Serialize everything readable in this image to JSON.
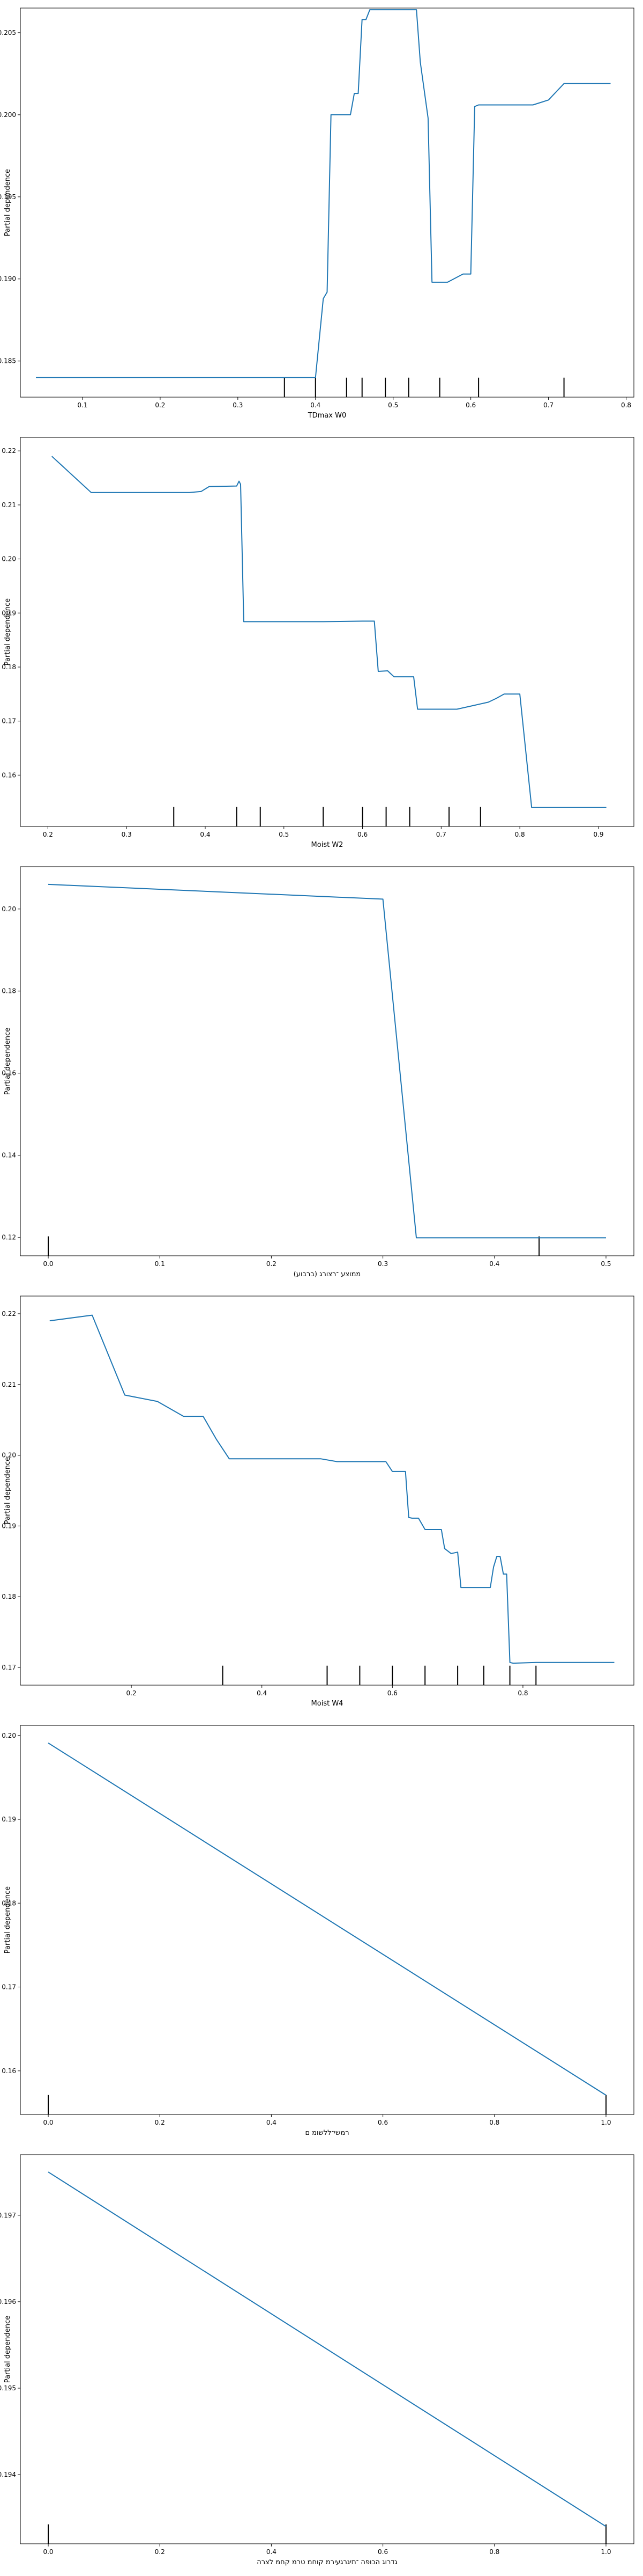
{
  "chart_data": [
    {
      "type": "line",
      "xlabel": "TDmax W0",
      "ylabel": "Partial dependence",
      "xlim": [
        0.02,
        0.81
      ],
      "ylim": [
        0.1828,
        0.2065
      ],
      "xticks": [
        0.1,
        0.2,
        0.3,
        0.4,
        0.5,
        0.6,
        0.7,
        0.8
      ],
      "xtick_labels": [
        "0.1",
        "0.2",
        "0.3",
        "0.4",
        "0.5",
        "0.6",
        "0.7",
        "0.8"
      ],
      "yticks": [
        0.185,
        0.19,
        0.195,
        0.2,
        0.205
      ],
      "ytick_labels": [
        "0.185",
        "0.190",
        "0.195",
        "0.200",
        "0.205"
      ],
      "x": [
        0.04,
        0.4,
        0.41,
        0.415,
        0.42,
        0.425,
        0.43,
        0.44,
        0.445,
        0.45,
        0.455,
        0.46,
        0.465,
        0.47,
        0.475,
        0.48,
        0.485,
        0.49,
        0.5,
        0.52,
        0.53,
        0.535,
        0.545,
        0.55,
        0.56,
        0.57,
        0.59,
        0.6,
        0.605,
        0.61,
        0.62,
        0.68,
        0.7,
        0.72,
        0.78
      ],
      "y": [
        0.184,
        0.184,
        0.1888,
        0.1892,
        0.2,
        0.2,
        0.2,
        0.2,
        0.2,
        0.2013,
        0.2013,
        0.2058,
        0.2058,
        0.2064,
        0.2064,
        0.2064,
        0.2064,
        0.2064,
        0.2064,
        0.2064,
        0.2064,
        0.2032,
        0.1998,
        0.1898,
        0.1898,
        0.1898,
        0.1903,
        0.1903,
        0.2005,
        0.2006,
        0.2006,
        0.2006,
        0.2009,
        0.2019,
        0.2019
      ],
      "deciles": [
        0.36,
        0.4,
        0.44,
        0.46,
        0.49,
        0.52,
        0.56,
        0.61,
        0.72
      ]
    },
    {
      "type": "line",
      "xlabel": "Moist W2",
      "ylabel": "Partial dependence",
      "xlim": [
        0.165,
        0.945
      ],
      "ylim": [
        0.1505,
        0.2225
      ],
      "xticks": [
        0.2,
        0.3,
        0.4,
        0.5,
        0.6,
        0.7,
        0.8,
        0.9
      ],
      "xtick_labels": [
        "0.2",
        "0.3",
        "0.4",
        "0.5",
        "0.6",
        "0.7",
        "0.8",
        "0.9"
      ],
      "yticks": [
        0.16,
        0.17,
        0.18,
        0.19,
        0.2,
        0.21,
        0.22
      ],
      "ytick_labels": [
        "0.16",
        "0.17",
        "0.18",
        "0.19",
        "0.20",
        "0.21",
        "0.22"
      ],
      "x": [
        0.205,
        0.255,
        0.32,
        0.38,
        0.395,
        0.405,
        0.44,
        0.443,
        0.445,
        0.449,
        0.55,
        0.6,
        0.615,
        0.62,
        0.632,
        0.64,
        0.645,
        0.665,
        0.67,
        0.72,
        0.76,
        0.77,
        0.78,
        0.8,
        0.815,
        0.91
      ],
      "y": [
        0.219,
        0.2123,
        0.2123,
        0.2123,
        0.2125,
        0.2134,
        0.2135,
        0.2144,
        0.2138,
        0.1884,
        0.1884,
        0.1885,
        0.1885,
        0.1792,
        0.1793,
        0.1782,
        0.1782,
        0.1782,
        0.1722,
        0.1722,
        0.1735,
        0.1742,
        0.175,
        0.175,
        0.154,
        0.154
      ],
      "deciles": [
        0.36,
        0.44,
        0.47,
        0.55,
        0.6,
        0.63,
        0.66,
        0.71,
        0.75
      ]
    },
    {
      "type": "line",
      "xlabel": "(ברבוע) ממוצע ־רצורג",
      "ylabel": "Partial dependence",
      "xlim": [
        -0.025,
        0.525
      ],
      "ylim": [
        0.1155,
        0.2103
      ],
      "xticks": [
        0.0,
        0.1,
        0.2,
        0.3,
        0.4,
        0.5
      ],
      "xtick_labels": [
        "0.0",
        "0.1",
        "0.2",
        "0.3",
        "0.4",
        "0.5"
      ],
      "yticks": [
        0.12,
        0.14,
        0.16,
        0.18,
        0.2
      ],
      "ytick_labels": [
        "0.12",
        "0.14",
        "0.16",
        "0.18",
        "0.20"
      ],
      "x": [
        0.0,
        0.3,
        0.33,
        0.5
      ],
      "y": [
        0.206,
        0.2024,
        0.1199,
        0.1199
      ],
      "deciles": [
        0.0,
        0.44
      ]
    },
    {
      "type": "line",
      "xlabel": "Moist W4",
      "ylabel": "Partial dependence",
      "xlim": [
        0.03,
        0.97
      ],
      "ylim": [
        0.1675,
        0.2225
      ],
      "xticks": [
        0.2,
        0.4,
        0.6,
        0.8
      ],
      "xtick_labels": [
        "0.2",
        "0.4",
        "0.6",
        "0.8"
      ],
      "yticks": [
        0.17,
        0.18,
        0.19,
        0.2,
        0.21,
        0.22
      ],
      "ytick_labels": [
        "0.17",
        "0.18",
        "0.19",
        "0.20",
        "0.21",
        "0.22"
      ],
      "x": [
        0.075,
        0.14,
        0.19,
        0.24,
        0.28,
        0.31,
        0.33,
        0.35,
        0.38,
        0.49,
        0.515,
        0.52,
        0.59,
        0.6,
        0.62,
        0.625,
        0.63,
        0.64,
        0.65,
        0.655,
        0.66,
        0.675,
        0.68,
        0.69,
        0.7,
        0.705,
        0.71,
        0.72,
        0.75,
        0.755,
        0.76,
        0.765,
        0.77,
        0.775,
        0.78,
        0.785,
        0.82,
        0.94
      ],
      "y": [
        0.219,
        0.2198,
        0.2085,
        0.2076,
        0.2055,
        0.2055,
        0.2023,
        0.1995,
        0.1995,
        0.1995,
        0.1991,
        0.1991,
        0.1991,
        0.1977,
        0.1977,
        0.1912,
        0.1911,
        0.1911,
        0.1895,
        0.1895,
        0.1895,
        0.1895,
        0.1868,
        0.1861,
        0.1863,
        0.1813,
        0.1813,
        0.1813,
        0.1813,
        0.1842,
        0.1857,
        0.1857,
        0.1832,
        0.1832,
        0.1707,
        0.1706,
        0.1707,
        0.1707
      ],
      "deciles": [
        0.34,
        0.5,
        0.55,
        0.6,
        0.65,
        0.7,
        0.74,
        0.78,
        0.82
      ]
    },
    {
      "type": "line",
      "xlabel": "רמשי־ללשומ ם",
      "ylabel": "Partial dependence",
      "xlim": [
        -0.05,
        1.05
      ],
      "ylim": [
        0.1548,
        0.2012
      ],
      "xticks": [
        0.0,
        0.2,
        0.4,
        0.6,
        0.8,
        1.0
      ],
      "xtick_labels": [
        "0.0",
        "0.2",
        "0.4",
        "0.6",
        "0.8",
        "1.0"
      ],
      "yticks": [
        0.16,
        0.17,
        0.18,
        0.19,
        0.2
      ],
      "ytick_labels": [
        "0.16",
        "0.17",
        "0.18",
        "0.19",
        "0.20"
      ],
      "x": [
        0.0,
        1.0
      ],
      "y": [
        0.1991,
        0.1571
      ],
      "deciles": [
        0.0,
        1.0
      ]
    },
    {
      "type": "line",
      "xlabel": "גדרוג הכופה ־תיגרגעירמ קוחמ טרמ קחמ לצרה",
      "ylabel": "Partial dependence",
      "xlim": [
        -0.05,
        1.05
      ],
      "ylim": [
        0.1932,
        0.1977
      ],
      "xticks": [
        0.0,
        0.2,
        0.4,
        0.6,
        0.8,
        1.0
      ],
      "xtick_labels": [
        "0.0",
        "0.2",
        "0.4",
        "0.6",
        "0.8",
        "1.0"
      ],
      "yticks": [
        0.194,
        0.195,
        0.196,
        0.197
      ],
      "ytick_labels": [
        "0.194",
        "0.195",
        "0.196",
        "0.197"
      ],
      "x": [
        0.0,
        1.0
      ],
      "y": [
        0.1975,
        0.1934
      ],
      "deciles": [
        0.0,
        1.0
      ]
    }
  ],
  "style": {
    "line_color": "#1f77b4",
    "axis_color": "#000000",
    "decile_color": "#000000"
  }
}
